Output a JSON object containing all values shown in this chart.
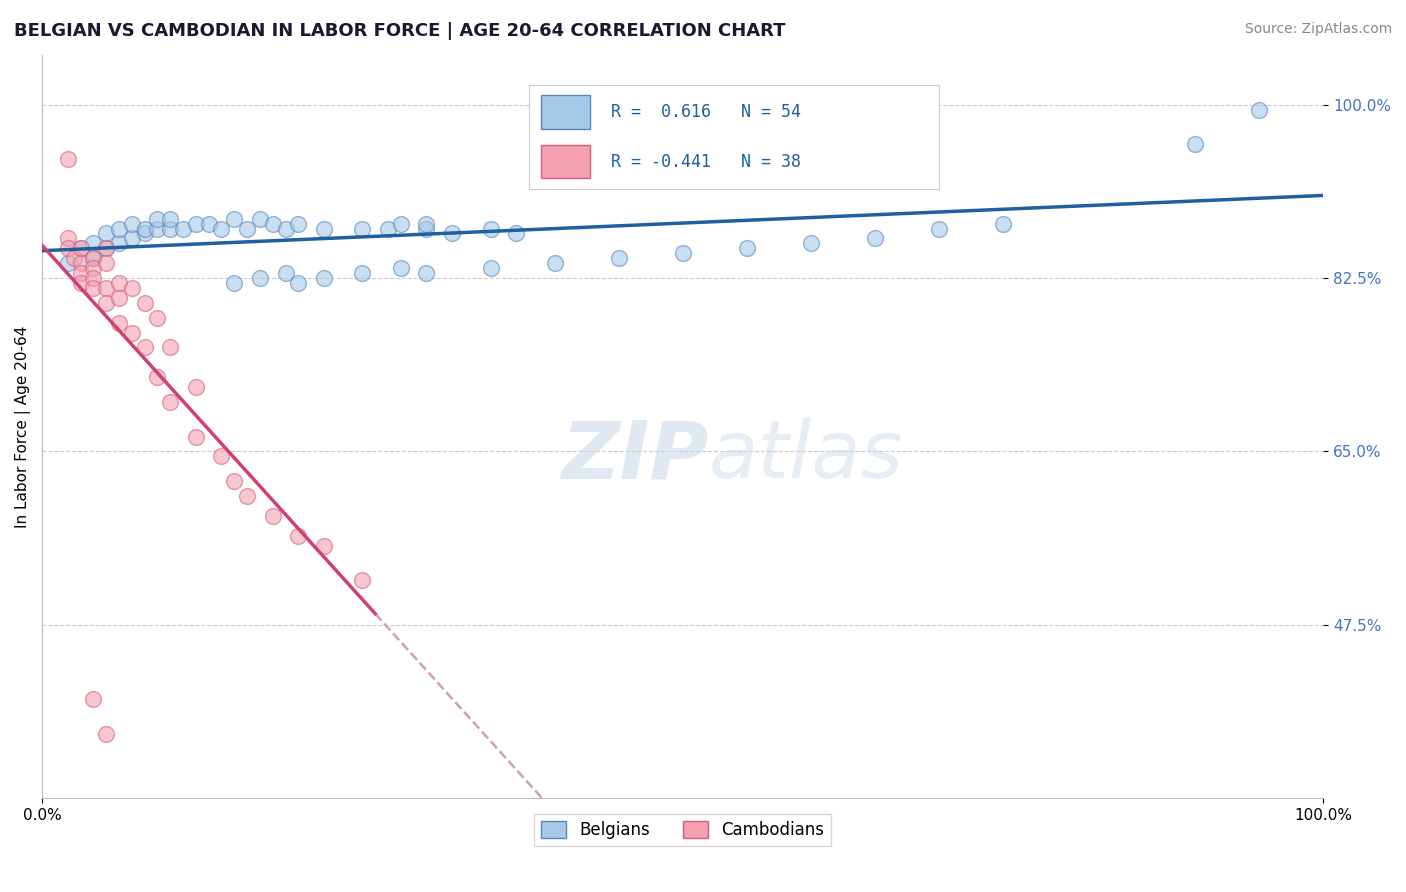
{
  "title": "BELGIAN VS CAMBODIAN IN LABOR FORCE | AGE 20-64 CORRELATION CHART",
  "source_text": "Source: ZipAtlas.com",
  "ylabel": "In Labor Force | Age 20-64",
  "xlim": [
    0.0,
    1.0
  ],
  "ylim": [
    0.3,
    1.05
  ],
  "ytick_vals": [
    1.0,
    0.825,
    0.65,
    0.475
  ],
  "ytick_labels": [
    "100.0%",
    "82.5%",
    "65.0%",
    "47.5%"
  ],
  "xtick_vals": [
    0.0,
    1.0
  ],
  "xtick_labels": [
    "0.0%",
    "100.0%"
  ],
  "legend_r_blue": "0.616",
  "legend_n_blue": "54",
  "legend_r_pink": "-0.441",
  "legend_n_pink": "38",
  "blue_fill": "#a8c8e8",
  "blue_edge": "#5588bb",
  "pink_fill": "#f4a0b0",
  "pink_edge": "#d06080",
  "blue_line": "#2060a0",
  "pink_line": "#d04070",
  "dashed_line": "#d0a0b0",
  "blue_scatter": [
    [
      0.02,
      0.84
    ],
    [
      0.03,
      0.855
    ],
    [
      0.04,
      0.845
    ],
    [
      0.04,
      0.86
    ],
    [
      0.05,
      0.855
    ],
    [
      0.05,
      0.87
    ],
    [
      0.06,
      0.86
    ],
    [
      0.06,
      0.875
    ],
    [
      0.07,
      0.865
    ],
    [
      0.07,
      0.88
    ],
    [
      0.08,
      0.87
    ],
    [
      0.08,
      0.875
    ],
    [
      0.09,
      0.875
    ],
    [
      0.09,
      0.885
    ],
    [
      0.1,
      0.875
    ],
    [
      0.1,
      0.885
    ],
    [
      0.11,
      0.875
    ],
    [
      0.12,
      0.88
    ],
    [
      0.13,
      0.88
    ],
    [
      0.14,
      0.875
    ],
    [
      0.15,
      0.885
    ],
    [
      0.16,
      0.875
    ],
    [
      0.17,
      0.885
    ],
    [
      0.18,
      0.88
    ],
    [
      0.19,
      0.875
    ],
    [
      0.2,
      0.88
    ],
    [
      0.22,
      0.875
    ],
    [
      0.25,
      0.875
    ],
    [
      0.27,
      0.875
    ],
    [
      0.28,
      0.88
    ],
    [
      0.3,
      0.875
    ],
    [
      0.3,
      0.88
    ],
    [
      0.32,
      0.87
    ],
    [
      0.35,
      0.875
    ],
    [
      0.37,
      0.87
    ],
    [
      0.15,
      0.82
    ],
    [
      0.17,
      0.825
    ],
    [
      0.19,
      0.83
    ],
    [
      0.2,
      0.82
    ],
    [
      0.22,
      0.825
    ],
    [
      0.25,
      0.83
    ],
    [
      0.28,
      0.835
    ],
    [
      0.3,
      0.83
    ],
    [
      0.35,
      0.835
    ],
    [
      0.4,
      0.84
    ],
    [
      0.45,
      0.845
    ],
    [
      0.5,
      0.85
    ],
    [
      0.55,
      0.855
    ],
    [
      0.6,
      0.86
    ],
    [
      0.65,
      0.865
    ],
    [
      0.7,
      0.875
    ],
    [
      0.75,
      0.88
    ],
    [
      0.9,
      0.96
    ],
    [
      0.95,
      0.995
    ]
  ],
  "pink_scatter": [
    [
      0.02,
      0.945
    ],
    [
      0.02,
      0.865
    ],
    [
      0.02,
      0.855
    ],
    [
      0.025,
      0.845
    ],
    [
      0.03,
      0.855
    ],
    [
      0.03,
      0.84
    ],
    [
      0.03,
      0.83
    ],
    [
      0.03,
      0.82
    ],
    [
      0.04,
      0.845
    ],
    [
      0.04,
      0.835
    ],
    [
      0.04,
      0.825
    ],
    [
      0.04,
      0.815
    ],
    [
      0.05,
      0.855
    ],
    [
      0.05,
      0.84
    ],
    [
      0.05,
      0.815
    ],
    [
      0.05,
      0.8
    ],
    [
      0.06,
      0.82
    ],
    [
      0.06,
      0.805
    ],
    [
      0.06,
      0.78
    ],
    [
      0.07,
      0.815
    ],
    [
      0.07,
      0.77
    ],
    [
      0.08,
      0.8
    ],
    [
      0.08,
      0.755
    ],
    [
      0.09,
      0.785
    ],
    [
      0.09,
      0.725
    ],
    [
      0.1,
      0.755
    ],
    [
      0.1,
      0.7
    ],
    [
      0.12,
      0.715
    ],
    [
      0.12,
      0.665
    ],
    [
      0.14,
      0.645
    ],
    [
      0.15,
      0.62
    ],
    [
      0.16,
      0.605
    ],
    [
      0.18,
      0.585
    ],
    [
      0.2,
      0.565
    ],
    [
      0.22,
      0.555
    ],
    [
      0.25,
      0.52
    ],
    [
      0.04,
      0.4
    ],
    [
      0.05,
      0.365
    ]
  ],
  "title_fontsize": 13,
  "axis_label_fontsize": 11,
  "tick_fontsize": 11,
  "source_fontsize": 10,
  "legend_fontsize": 12
}
